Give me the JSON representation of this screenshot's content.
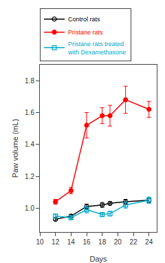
{
  "chart_data": {
    "type": "line",
    "x": [
      12,
      14,
      16,
      18,
      19,
      21,
      24
    ],
    "series": [
      {
        "name": "Control rats",
        "color": "#000000",
        "marker": "circle-open",
        "values": [
          0.93,
          0.95,
          1.01,
          1.02,
          1.03,
          1.04,
          1.05
        ],
        "errors": [
          0.01,
          0.01,
          0.015,
          0.015,
          0.01,
          0.015,
          0.015
        ]
      },
      {
        "name": "Pristane rats",
        "color": "#ff0000",
        "marker": "circle",
        "values": [
          1.04,
          1.11,
          1.52,
          1.58,
          1.58,
          1.68,
          1.62
        ],
        "errors": [
          0.015,
          0.02,
          0.08,
          0.05,
          0.065,
          0.085,
          0.05
        ]
      },
      {
        "name": "Pristane rats treated\nwith Dexamethasone",
        "color": "#00aacc",
        "marker": "square-open",
        "values": [
          0.95,
          0.94,
          0.99,
          0.96,
          0.965,
          1.02,
          1.05
        ],
        "errors": [
          0.01,
          0.01,
          0.02,
          0.01,
          0.015,
          0.02,
          0.02
        ]
      }
    ],
    "xlim": [
      10,
      25
    ],
    "ylim": [
      0.85,
      1.9
    ],
    "xticks": [
      10,
      12,
      14,
      16,
      18,
      20,
      22,
      24
    ],
    "yticks": [
      {
        "value": 1.0,
        "label": "1.0"
      },
      1.2,
      1.4,
      1.6,
      1.8
    ],
    "xlabel": "Days",
    "ylabel": "Paw volume (mL)",
    "legend": "upper left",
    "grid": false
  }
}
